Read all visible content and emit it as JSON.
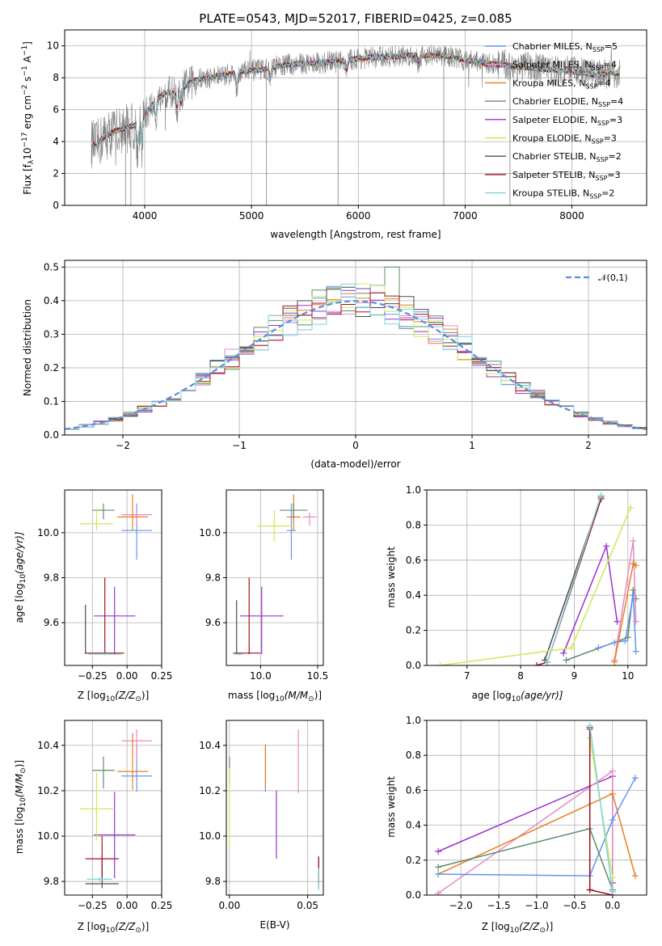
{
  "colors": {
    "chabrier_miles": "#6495ED",
    "salpeter_miles": "#E78AC3",
    "kroupa_miles": "#E6801F",
    "chabrier_elodie": "#5F8C6A",
    "salpeter_elodie": "#9932CC",
    "kroupa_elodie": "#CDEA55",
    "chabrier_stelib": "#4D4D4D",
    "salpeter_stelib": "#A0141E",
    "kroupa_stelib": "#7FD3DC",
    "data": "#808080",
    "gauss": "#5B8BD9"
  },
  "chart_data": [
    {
      "id": "spectrum",
      "type": "line",
      "title": "PLATE=0543, MJD=52017, FIBERID=0425, z=0.085",
      "xlabel": "wavelength [Angstrom, rest frame]",
      "ylabel": "Flux [f",
      "ylabel_sub": "λ",
      "ylabel_rest": "10",
      "ylabel_sup1": "−17",
      "ylabel_mid": " erg cm",
      "ylabel_sup2": "−2",
      "ylabel_mid2": " s",
      "ylabel_sup3": "−1",
      "ylabel_end": " A",
      "ylabel_sup4": "−1",
      "ylabel_close": "]",
      "xlim": [
        3250,
        8700
      ],
      "ylim": [
        0,
        11
      ],
      "xticks": [
        4000,
        5000,
        6000,
        7000,
        8000
      ],
      "yticks": [
        0,
        2,
        4,
        6,
        8,
        10
      ],
      "legend_position": "right",
      "legend": [
        {
          "pre": "Chabrier MILES, N",
          "sub": "SSP",
          "post": "=5"
        },
        {
          "pre": "Salpeter MILES, N",
          "sub": "SSP",
          "post": "=4"
        },
        {
          "pre": "Kroupa MILES, N",
          "sub": "SSP",
          "post": "=4"
        },
        {
          "pre": "Chabrier ELODIE, N",
          "sub": "SSP",
          "post": "=4"
        },
        {
          "pre": "Salpeter ELODIE, N",
          "sub": "SSP",
          "post": "=3"
        },
        {
          "pre": "Kroupa ELODIE, N",
          "sub": "SSP",
          "post": "=3"
        },
        {
          "pre": "Chabrier STELIB, N",
          "sub": "SSP",
          "post": "=2"
        },
        {
          "pre": "Salpeter STELIB, N",
          "sub": "SSP",
          "post": "=3"
        },
        {
          "pre": "Kroupa STELIB, N",
          "sub": "SSP",
          "post": "=2"
        }
      ],
      "continuum": [
        [
          3500,
          3.9
        ],
        [
          3550,
          3.7
        ],
        [
          3600,
          4.2
        ],
        [
          3700,
          4.6
        ],
        [
          3800,
          4.8
        ],
        [
          3900,
          5.0
        ],
        [
          4000,
          5.6
        ],
        [
          4100,
          6.6
        ],
        [
          4200,
          7.1
        ],
        [
          4300,
          7.0
        ],
        [
          4400,
          7.6
        ],
        [
          4500,
          7.9
        ],
        [
          4700,
          8.1
        ],
        [
          4900,
          8.4
        ],
        [
          5100,
          8.5
        ],
        [
          5300,
          8.8
        ],
        [
          5500,
          8.9
        ],
        [
          5800,
          9.0
        ],
        [
          6000,
          9.2
        ],
        [
          6200,
          9.3
        ],
        [
          6500,
          9.4
        ],
        [
          6800,
          9.4
        ],
        [
          7000,
          9.1
        ],
        [
          7200,
          8.9
        ],
        [
          7500,
          8.7
        ],
        [
          7800,
          8.5
        ],
        [
          8000,
          8.4
        ],
        [
          8200,
          8.2
        ],
        [
          8450,
          8.3
        ]
      ]
    },
    {
      "id": "residuals",
      "type": "histogram",
      "xlabel": "(data-model)/error",
      "ylabel": "Normed distribution",
      "xlim": [
        -2.5,
        2.5
      ],
      "ylim": [
        0,
        0.52
      ],
      "xticks": [
        -2,
        -1,
        0,
        1,
        2
      ],
      "yticks": [
        0.0,
        0.1,
        0.2,
        0.3,
        0.4,
        0.5
      ],
      "legend_label": "𝒩(0,1)",
      "legend_position": "top-right",
      "bins": 40,
      "peak_value": 0.5,
      "gauss_peak": 0.3989
    },
    {
      "id": "age_vs_Z",
      "type": "scatter",
      "xlabel_pre": "Z [log",
      "xlabel_sub": "10",
      "xlabel_post": "(Z/Z",
      "xlabel_sub2": "⊙",
      "xlabel_close": ")]",
      "ylabel_pre": "age  [log",
      "ylabel_sub": "10",
      "ylabel_post": "(age/yr)]",
      "xlim": [
        -0.45,
        0.25
      ],
      "ylim": [
        9.41,
        10.19
      ],
      "xticks": [
        -0.25,
        0.0,
        0.25
      ],
      "xtick_labels": [
        "−0.25",
        "0.00",
        "0.25"
      ],
      "yticks": [
        9.6,
        9.8,
        10.0
      ],
      "points": [
        {
          "series": "chabrier_miles",
          "x": 0.07,
          "y": 10.01,
          "xerr": 0.11,
          "yerr": [
            0.13,
            0.12
          ]
        },
        {
          "series": "salpeter_miles",
          "x": 0.07,
          "y": 10.08,
          "xerr": 0.11,
          "yerr": [
            0.04,
            0.02
          ]
        },
        {
          "series": "kroupa_miles",
          "x": 0.04,
          "y": 10.07,
          "xerr": 0.11,
          "yerr": [
            0.06,
            0.1
          ]
        },
        {
          "series": "chabrier_elodie",
          "x": -0.17,
          "y": 10.1,
          "xerr": 0.08,
          "yerr": [
            0.04,
            0.03
          ]
        },
        {
          "series": "salpeter_elodie",
          "x": -0.09,
          "y": 9.63,
          "xerr": 0.15,
          "yerr": [
            0.17,
            0.13
          ]
        },
        {
          "series": "kroupa_elodie",
          "x": -0.22,
          "y": 10.04,
          "xerr": 0.12,
          "yerr": [
            0.03,
            0.07
          ]
        },
        {
          "series": "chabrier_stelib",
          "x": -0.3,
          "y": 9.465,
          "xerr": 0.0,
          "yerr": [
            0.005,
            0.215
          ]
        },
        {
          "series": "salpeter_stelib",
          "x": -0.16,
          "y": 9.465,
          "xerr": 0.14,
          "yerr": [
            0.005,
            0.335
          ]
        },
        {
          "series": "kroupa_stelib",
          "x": -0.16,
          "y": 9.46,
          "xerr": 0.12,
          "yerr": [
            0.005,
            0.005
          ]
        }
      ]
    },
    {
      "id": "age_vs_mass",
      "type": "scatter",
      "xlabel_pre": "mass [log",
      "xlabel_sub": "10",
      "xlabel_post": "(M/M",
      "xlabel_sub2": "⊙",
      "xlabel_close": ")]",
      "xlim": [
        9.7,
        10.55
      ],
      "ylim": [
        9.41,
        10.19
      ],
      "xticks": [
        10.0,
        10.5
      ],
      "xtick_labels": [
        "10.0",
        "10.5"
      ],
      "yticks": [
        9.6,
        9.8,
        10.0
      ],
      "points": [
        {
          "series": "chabrier_miles",
          "x": 10.27,
          "y": 10.01,
          "xerr": 0.04,
          "yerr": [
            0.13,
            0.12
          ]
        },
        {
          "series": "salpeter_miles",
          "x": 10.43,
          "y": 10.07,
          "xerr": 0.06,
          "yerr": [
            0.04,
            0.02
          ]
        },
        {
          "series": "kroupa_miles",
          "x": 10.29,
          "y": 10.07,
          "xerr": 0.06,
          "yerr": [
            0.06,
            0.1
          ]
        },
        {
          "series": "chabrier_elodie",
          "x": 10.29,
          "y": 10.1,
          "xerr": 0.12,
          "yerr": [
            0.04,
            0.03
          ]
        },
        {
          "series": "salpeter_elodie",
          "x": 10.01,
          "y": 9.63,
          "xerr": 0.19,
          "yerr": [
            0.17,
            0.13
          ]
        },
        {
          "series": "kroupa_elodie",
          "x": 10.12,
          "y": 10.03,
          "xerr": 0.15,
          "yerr": [
            0.07,
            0.07
          ]
        },
        {
          "series": "chabrier_stelib",
          "x": 9.79,
          "y": 9.465,
          "xerr": 0.03,
          "yerr": [
            0.005,
            0.235
          ]
        },
        {
          "series": "salpeter_stelib",
          "x": 9.9,
          "y": 9.465,
          "xerr": 0.1,
          "yerr": [
            0.005,
            0.335
          ]
        },
        {
          "series": "kroupa_stelib",
          "x": 9.81,
          "y": 9.46,
          "xerr": 0.04,
          "yerr": [
            0.005,
            0.005
          ]
        }
      ]
    },
    {
      "id": "mass_weight_vs_age",
      "type": "line",
      "xlabel_pre": "age  [log",
      "xlabel_sub": "10",
      "xlabel_post": "(age/yr)]",
      "ylabel": "mass weight",
      "xlim": [
        6.25,
        10.35
      ],
      "ylim": [
        0,
        1
      ],
      "xticks": [
        7,
        8,
        9,
        10
      ],
      "xtick_labels": [
        "7",
        "8",
        "9",
        "10"
      ],
      "yticks": [
        0.0,
        0.2,
        0.4,
        0.6,
        0.8,
        1.0
      ],
      "series": [
        {
          "series": "chabrier_stelib",
          "points": [
            [
              8.45,
              0.03
            ],
            [
              9.5,
              0.96
            ]
          ]
        },
        {
          "series": "salpeter_stelib",
          "points": [
            [
              8.3,
              0.0
            ],
            [
              8.5,
              0.02
            ],
            [
              9.5,
              0.95
            ]
          ]
        },
        {
          "series": "kroupa_stelib",
          "points": [
            [
              8.5,
              0.02
            ],
            [
              9.5,
              0.97
            ]
          ]
        },
        {
          "series": "salpeter_elodie",
          "points": [
            [
              8.8,
              0.07
            ],
            [
              9.6,
              0.68
            ],
            [
              9.8,
              0.25
            ]
          ]
        },
        {
          "series": "kroupa_elodie",
          "points": [
            [
              6.5,
              0.0
            ],
            [
              8.95,
              0.1
            ],
            [
              10.05,
              0.9
            ]
          ]
        },
        {
          "series": "chabrier_elodie",
          "points": [
            [
              8.85,
              0.03
            ],
            [
              10.0,
              0.16
            ],
            [
              10.1,
              0.43
            ],
            [
              10.15,
              0.38
            ]
          ]
        },
        {
          "series": "chabrier_miles",
          "points": [
            [
              9.45,
              0.1
            ],
            [
              9.75,
              0.13
            ],
            [
              9.95,
              0.14
            ],
            [
              10.1,
              0.4
            ],
            [
              10.15,
              0.08
            ]
          ]
        },
        {
          "series": "salpeter_miles",
          "points": [
            [
              9.75,
              0.03
            ],
            [
              10.1,
              0.71
            ],
            [
              10.15,
              0.25
            ]
          ]
        },
        {
          "series": "kroupa_miles",
          "points": [
            [
              9.75,
              0.02
            ],
            [
              10.1,
              0.58
            ],
            [
              10.15,
              0.57
            ]
          ]
        }
      ]
    },
    {
      "id": "mass_vs_Z",
      "type": "scatter",
      "xlabel_pre": "Z [log",
      "xlabel_sub": "10",
      "xlabel_post": "(Z/Z",
      "xlabel_sub2": "⊙",
      "xlabel_close": ")]",
      "ylabel_pre": "mass [log",
      "ylabel_sub": "10",
      "ylabel_post": "(M/M",
      "ylabel_sub2": "⊙",
      "ylabel_close": ")]",
      "xlim": [
        -0.45,
        0.25
      ],
      "ylim": [
        9.74,
        10.51
      ],
      "xticks": [
        -0.25,
        0.0,
        0.25
      ],
      "xtick_labels": [
        "−0.25",
        "0.00",
        "0.25"
      ],
      "yticks": [
        9.8,
        10.0,
        10.2,
        10.4
      ],
      "points": [
        {
          "series": "chabrier_miles",
          "x": 0.07,
          "y": 10.265,
          "xerr": 0.11,
          "yerr": [
            0.07,
            0.14
          ]
        },
        {
          "series": "salpeter_miles",
          "x": 0.07,
          "y": 10.42,
          "xerr": 0.11,
          "yerr": [
            0.09,
            0.05
          ]
        },
        {
          "series": "kroupa_miles",
          "x": 0.04,
          "y": 10.285,
          "xerr": 0.11,
          "yerr": [
            0.08,
            0.17
          ]
        },
        {
          "series": "chabrier_elodie",
          "x": -0.17,
          "y": 10.29,
          "xerr": 0.08,
          "yerr": [
            0.08,
            0.06
          ]
        },
        {
          "series": "salpeter_elodie",
          "x": -0.09,
          "y": 10.005,
          "xerr": 0.15,
          "yerr": [
            0.19,
            0.19
          ]
        },
        {
          "series": "kroupa_elodie",
          "x": -0.22,
          "y": 10.12,
          "xerr": 0.12,
          "yerr": [
            0.14,
            0.16
          ]
        },
        {
          "series": "chabrier_stelib",
          "x": -0.18,
          "y": 9.79,
          "xerr": 0.12,
          "yerr": [
            0.02,
            0.12
          ]
        },
        {
          "series": "salpeter_stelib",
          "x": -0.18,
          "y": 9.9,
          "xerr": 0.12,
          "yerr": [
            0.08,
            0.1
          ]
        },
        {
          "series": "kroupa_stelib",
          "x": -0.2,
          "y": 9.81,
          "xerr": 0.09,
          "yerr": [
            0.01,
            0.01
          ]
        }
      ]
    },
    {
      "id": "mass_vs_ebv",
      "type": "scatter",
      "xlabel": "E(B-V)",
      "xlim": [
        -0.002,
        0.06
      ],
      "ylim": [
        9.74,
        10.51
      ],
      "xticks": [
        0.0,
        0.05
      ],
      "xtick_labels": [
        "0.00",
        "0.05"
      ],
      "yticks": [
        9.8,
        10.0,
        10.2,
        10.4
      ],
      "points": [
        {
          "series": "chabrier_miles",
          "x": 0.023,
          "y": 10.265,
          "xerr": 0.0,
          "yerr": [
            0.07,
            0.14
          ]
        },
        {
          "series": "salpeter_miles",
          "x": 0.044,
          "y": 10.33,
          "xerr": 0.0,
          "yerr": [
            0.14,
            0.14
          ]
        },
        {
          "series": "kroupa_miles",
          "x": 0.023,
          "y": 10.29,
          "xerr": 0.0,
          "yerr": [
            0.08,
            0.11
          ]
        },
        {
          "series": "chabrier_elodie",
          "x": 0.0,
          "y": 10.29,
          "xerr": 0.0,
          "yerr": [
            0.06,
            0.06
          ]
        },
        {
          "series": "salpeter_elodie",
          "x": 0.03,
          "y": 10.05,
          "xerr": 0.0,
          "yerr": [
            0.15,
            0.15
          ]
        },
        {
          "series": "kroupa_elodie",
          "x": 0.0,
          "y": 10.12,
          "xerr": 0.0,
          "yerr": [
            0.18,
            0.18
          ]
        },
        {
          "series": "chabrier_stelib",
          "x": 0.057,
          "y": 9.84,
          "xerr": 0.0,
          "yerr": [
            0.07,
            0.07
          ]
        },
        {
          "series": "salpeter_stelib",
          "x": 0.057,
          "y": 9.85,
          "xerr": 0.0,
          "yerr": [
            0.06,
            0.06
          ]
        },
        {
          "series": "kroupa_stelib",
          "x": 0.057,
          "y": 9.81,
          "xerr": 0.0,
          "yerr": [
            0.05,
            0.05
          ]
        }
      ]
    },
    {
      "id": "mass_weight_vs_Z",
      "type": "line",
      "xlabel_pre": "Z [log",
      "xlabel_sub": "10",
      "xlabel_post": "(Z/Z",
      "xlabel_sub2": "⊙",
      "xlabel_close": ")]",
      "ylabel": "mass weight",
      "xlim": [
        -2.45,
        0.45
      ],
      "ylim": [
        0,
        1
      ],
      "xticks": [
        -2.0,
        -1.5,
        -1.0,
        -0.5,
        0.0
      ],
      "xtick_labels": [
        "−2.0",
        "−1.5",
        "−1.0",
        "−0.5",
        "0.0"
      ],
      "yticks": [
        0.0,
        0.2,
        0.4,
        0.6,
        0.8,
        1.0
      ],
      "series": [
        {
          "series": "salpeter_elodie",
          "points": [
            [
              -2.3,
              0.25
            ],
            [
              0.0,
              0.68
            ],
            [
              0.0,
              0.07
            ]
          ]
        },
        {
          "series": "salpeter_miles",
          "points": [
            [
              -2.3,
              0.01
            ],
            [
              0.0,
              0.71
            ],
            [
              0.0,
              0.02
            ]
          ]
        },
        {
          "series": "kroupa_miles",
          "points": [
            [
              -2.3,
              0.12
            ],
            [
              0.0,
              0.58
            ],
            [
              0.3,
              0.11
            ]
          ]
        },
        {
          "series": "chabrier_miles",
          "points": [
            [
              -2.3,
              0.12
            ],
            [
              -0.3,
              0.11
            ],
            [
              0.0,
              0.43
            ],
            [
              0.3,
              0.67
            ]
          ]
        },
        {
          "series": "chabrier_elodie",
          "points": [
            [
              -2.3,
              0.16
            ],
            [
              -0.3,
              0.38
            ],
            [
              0.0,
              0.03
            ]
          ]
        },
        {
          "series": "kroupa_elodie",
          "points": [
            [
              -0.3,
              0.9
            ],
            [
              0.0,
              0.1
            ]
          ]
        },
        {
          "series": "chabrier_stelib",
          "points": [
            [
              -0.3,
              0.96
            ],
            [
              -0.3,
              0.03
            ]
          ]
        },
        {
          "series": "salpeter_stelib",
          "points": [
            [
              -0.3,
              0.95
            ],
            [
              -0.3,
              0.03
            ],
            [
              0.0,
              0.0
            ]
          ]
        },
        {
          "series": "kroupa_stelib",
          "points": [
            [
              -0.3,
              0.97
            ],
            [
              0.0,
              0.02
            ]
          ]
        }
      ]
    }
  ]
}
